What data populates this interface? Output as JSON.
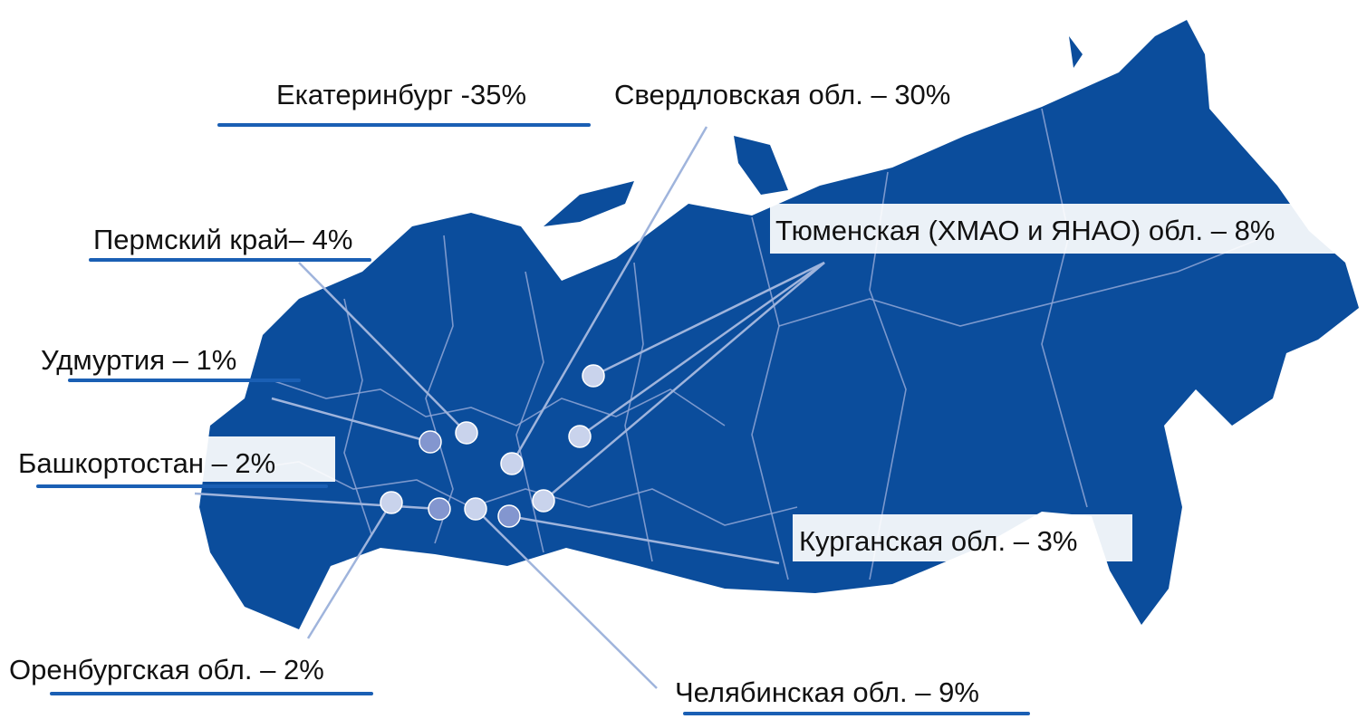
{
  "labels": [
    "Екатеринбург -35%",
    "Свердловская обл. – 30%",
    "Пермский край– 4%",
    "Тюменская (ХМАО и ЯНАО) обл. – 8%",
    "Удмуртия – 1%",
    "Башкортостан – 2%",
    "Курганская обл. – 3%",
    "Оренбургская обл. – 2%",
    "Челябинская обл. – 9%"
  ]
}
